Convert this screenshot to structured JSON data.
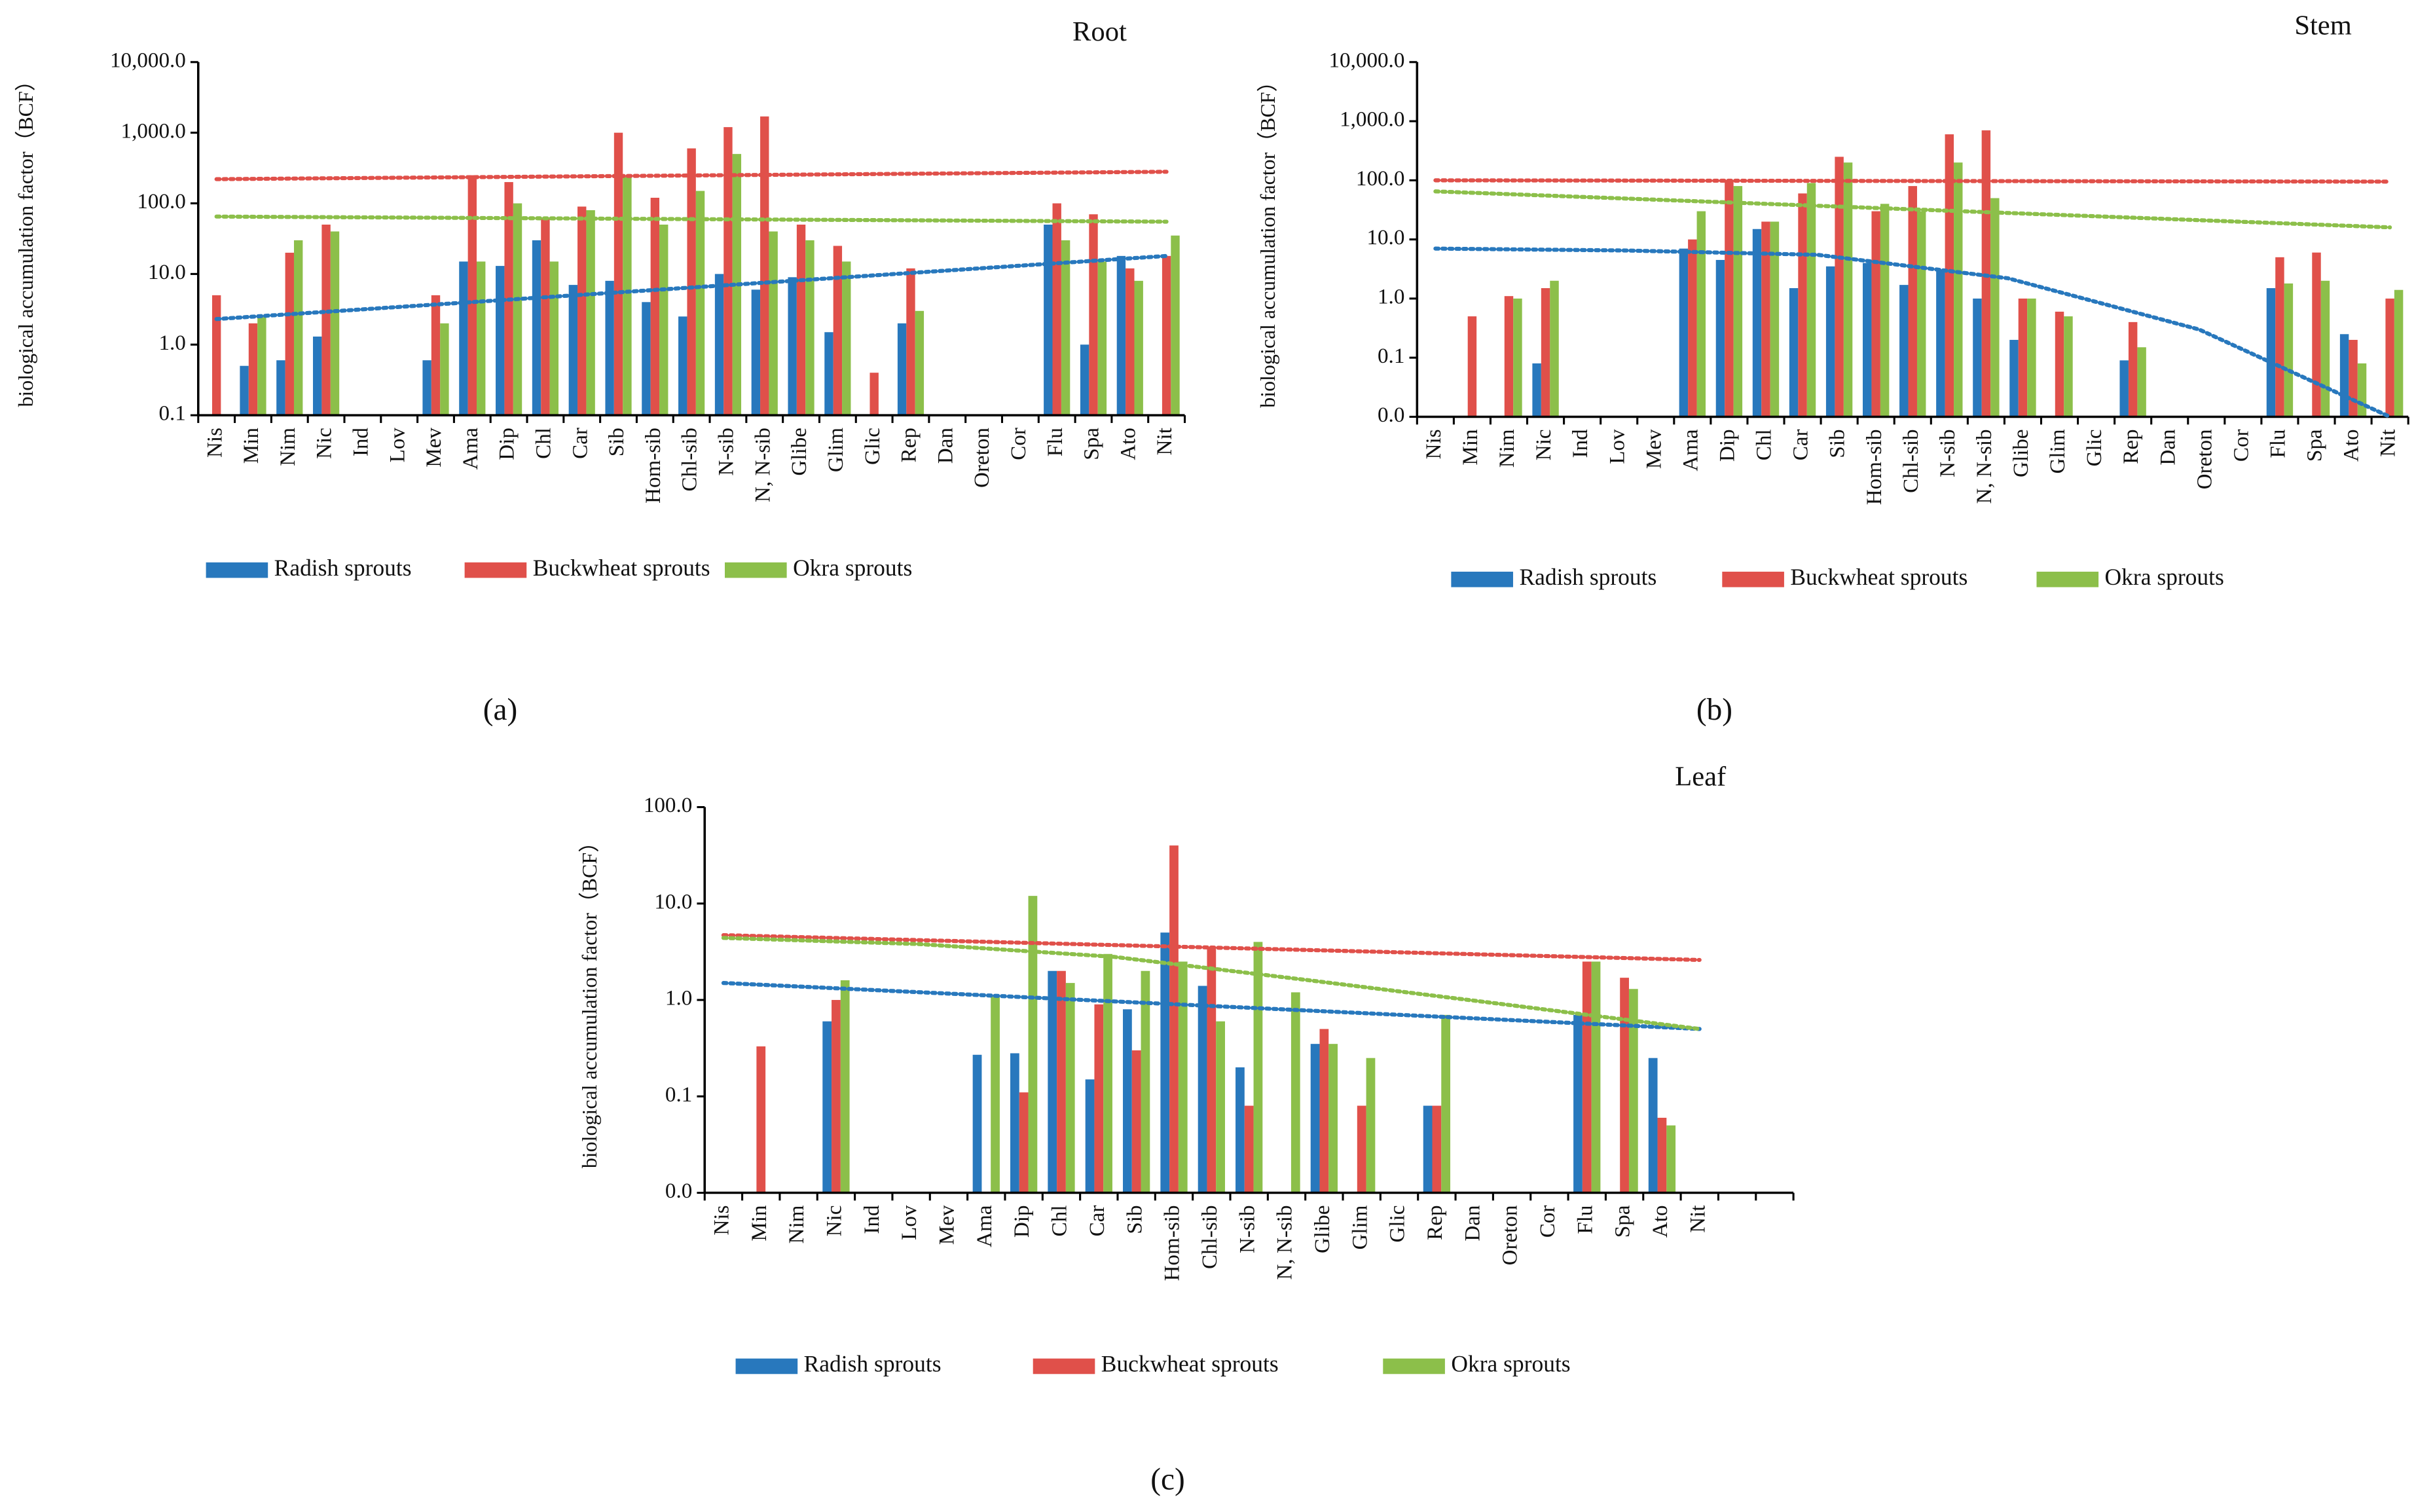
{
  "chart_data": [
    {
      "type": "bar",
      "title": "Root",
      "caption": "(a)",
      "y_label": "biological accumulation factor（BCF）",
      "log_scale": true,
      "categories": [
        "Nis",
        "Min",
        "Nim",
        "Nic",
        "Ind",
        "Lov",
        "Mev",
        "Ama",
        "Dip",
        "Chl",
        "Car",
        "Sib",
        "Hom-sib",
        "Chl-sib",
        "N-sib",
        "N, N-sib",
        "Glibe",
        "Glim",
        "Glic",
        "Rep",
        "Dan",
        "Oreton",
        "Cor",
        "Flu",
        "Spa",
        "Ato",
        "Nit"
      ],
      "ylim": [
        0.1,
        10000
      ],
      "yticks": [
        0.1,
        {
          "value": 1,
          "label": "1.0"
        },
        {
          "value": 10,
          "label": "10.0"
        },
        {
          "value": 100,
          "label": "100.0"
        },
        {
          "value": 1000,
          "label": "1,000.0"
        },
        {
          "value": 10000,
          "label": "10,000.0"
        }
      ],
      "series": [
        {
          "name": "Radish sprouts",
          "color": "#2878bd",
          "values": [
            null,
            0.5,
            0.6,
            1.3,
            null,
            null,
            0.6,
            15,
            13,
            30,
            7,
            8,
            4,
            2.5,
            10,
            6,
            9,
            1.5,
            null,
            2,
            null,
            null,
            null,
            50,
            1,
            18,
            null
          ],
          "trend": [
            2.3,
            18
          ]
        },
        {
          "name": "Buckwheat sprouts",
          "color": "#e0504a",
          "values": [
            5,
            2,
            20,
            50,
            null,
            null,
            5,
            250,
            200,
            60,
            90,
            1000,
            120,
            600,
            1200,
            1700,
            50,
            25,
            0.4,
            12,
            null,
            null,
            null,
            100,
            70,
            12,
            18
          ],
          "trend": [
            220,
            280
          ]
        },
        {
          "name": "Okra sprouts",
          "color": "#8cbf4a",
          "values": [
            null,
            2.5,
            30,
            40,
            null,
            null,
            2,
            15,
            100,
            15,
            80,
            250,
            50,
            150,
            500,
            40,
            30,
            15,
            null,
            3,
            null,
            null,
            null,
            30,
            15,
            8,
            35
          ],
          "trend": [
            65,
            55
          ]
        }
      ]
    },
    {
      "type": "bar",
      "title": "Stem",
      "caption": "(b)",
      "y_label": "biological accumulation factor（BCF）",
      "log_scale": true,
      "categories": [
        "Nis",
        "Min",
        "Nim",
        "Nic",
        "Ind",
        "Lov",
        "Mev",
        "Ama",
        "Dip",
        "Chl",
        "Car",
        "Sib",
        "Hom-sib",
        "Chl-sib",
        "N-sib",
        "N, N-sib",
        "Glibe",
        "Glim",
        "Glic",
        "Rep",
        "Dan",
        "Oreton",
        "Cor",
        "Flu",
        "Spa",
        "Ato",
        "Nit"
      ],
      "ylim": [
        0.01,
        10000
      ],
      "yticks": [
        {
          "value": 0.01,
          "label": "0.0"
        },
        0.1,
        {
          "value": 1,
          "label": "1.0"
        },
        {
          "value": 10,
          "label": "10.0"
        },
        {
          "value": 100,
          "label": "100.0"
        },
        {
          "value": 1000,
          "label": "1,000.0"
        },
        {
          "value": 10000,
          "label": "10,000.0"
        }
      ],
      "series": [
        {
          "name": "Radish sprouts",
          "color": "#2878bd",
          "values": [
            null,
            null,
            null,
            0.08,
            null,
            null,
            null,
            7,
            4.5,
            15,
            1.5,
            3.5,
            4,
            1.7,
            3,
            1,
            0.2,
            null,
            null,
            0.09,
            null,
            null,
            null,
            1.5,
            null,
            0.25,
            null
          ],
          "trend": [
            7,
            6.5,
            5.5,
            2.2,
            0.3,
            0.01
          ]
        },
        {
          "name": "Buckwheat sprouts",
          "color": "#e0504a",
          "values": [
            null,
            0.5,
            1.1,
            1.5,
            null,
            null,
            null,
            10,
            100,
            20,
            60,
            250,
            30,
            80,
            600,
            700,
            1,
            0.6,
            null,
            0.4,
            null,
            null,
            null,
            5,
            6,
            0.2,
            1
          ],
          "trend": [
            100,
            95
          ]
        },
        {
          "name": "Okra sprouts",
          "color": "#8cbf4a",
          "values": [
            null,
            null,
            1,
            2,
            null,
            null,
            null,
            30,
            80,
            20,
            90,
            200,
            40,
            30,
            200,
            50,
            1,
            0.5,
            null,
            0.15,
            null,
            null,
            null,
            1.8,
            2,
            0.08,
            1.4
          ],
          "trend": [
            65,
            16
          ]
        }
      ]
    },
    {
      "type": "bar",
      "title": "Leaf",
      "caption": "(c)",
      "y_label": "biological accumulation factor（BCF）",
      "log_scale": true,
      "categories": [
        "Nis",
        "Min",
        "Nim",
        "Nic",
        "Ind",
        "Lov",
        "Mev",
        "Ama",
        "Dip",
        "Chl",
        "Car",
        "Sib",
        "Hom-sib",
        "Chl-sib",
        "N-sib",
        "N, N-sib",
        "Glibe",
        "Glim",
        "Glic",
        "Rep",
        "Dan",
        "Oreton",
        "Cor",
        "Flu",
        "Spa",
        "Ato",
        "Nit"
      ],
      "ylim": [
        0.01,
        100
      ],
      "yticks": [
        {
          "value": 0.01,
          "label": "0.0"
        },
        0.1,
        {
          "value": 1,
          "label": "1.0"
        },
        {
          "value": 10,
          "label": "10.0"
        },
        {
          "value": 100,
          "label": "100.0"
        }
      ],
      "series": [
        {
          "name": "Radish sprouts",
          "color": "#2878bd",
          "values": [
            null,
            null,
            null,
            0.6,
            null,
            null,
            null,
            0.27,
            0.28,
            2,
            0.15,
            0.8,
            5,
            1.4,
            0.2,
            null,
            0.35,
            null,
            null,
            0.08,
            null,
            null,
            null,
            0.7,
            null,
            0.25,
            null
          ],
          "trend": [
            1.5,
            0.5
          ]
        },
        {
          "name": "Buckwheat sprouts",
          "color": "#e0504a",
          "values": [
            null,
            0.33,
            null,
            1,
            null,
            null,
            null,
            null,
            0.11,
            2,
            0.9,
            0.3,
            40,
            3.5,
            0.08,
            null,
            0.5,
            0.08,
            null,
            0.08,
            null,
            null,
            null,
            2.5,
            1.7,
            0.06,
            null
          ],
          "trend": [
            4.7,
            2.6
          ]
        },
        {
          "name": "Okra sprouts",
          "color": "#8cbf4a",
          "values": [
            null,
            null,
            null,
            1.6,
            null,
            null,
            null,
            1.1,
            12,
            1.5,
            3,
            2,
            2.5,
            0.6,
            4,
            1.2,
            0.35,
            0.25,
            null,
            0.7,
            null,
            null,
            null,
            2.5,
            1.3,
            0.05,
            null
          ],
          "trend": [
            4.4,
            3.8,
            2.8,
            1.6,
            0.9,
            0.5
          ]
        }
      ]
    }
  ]
}
